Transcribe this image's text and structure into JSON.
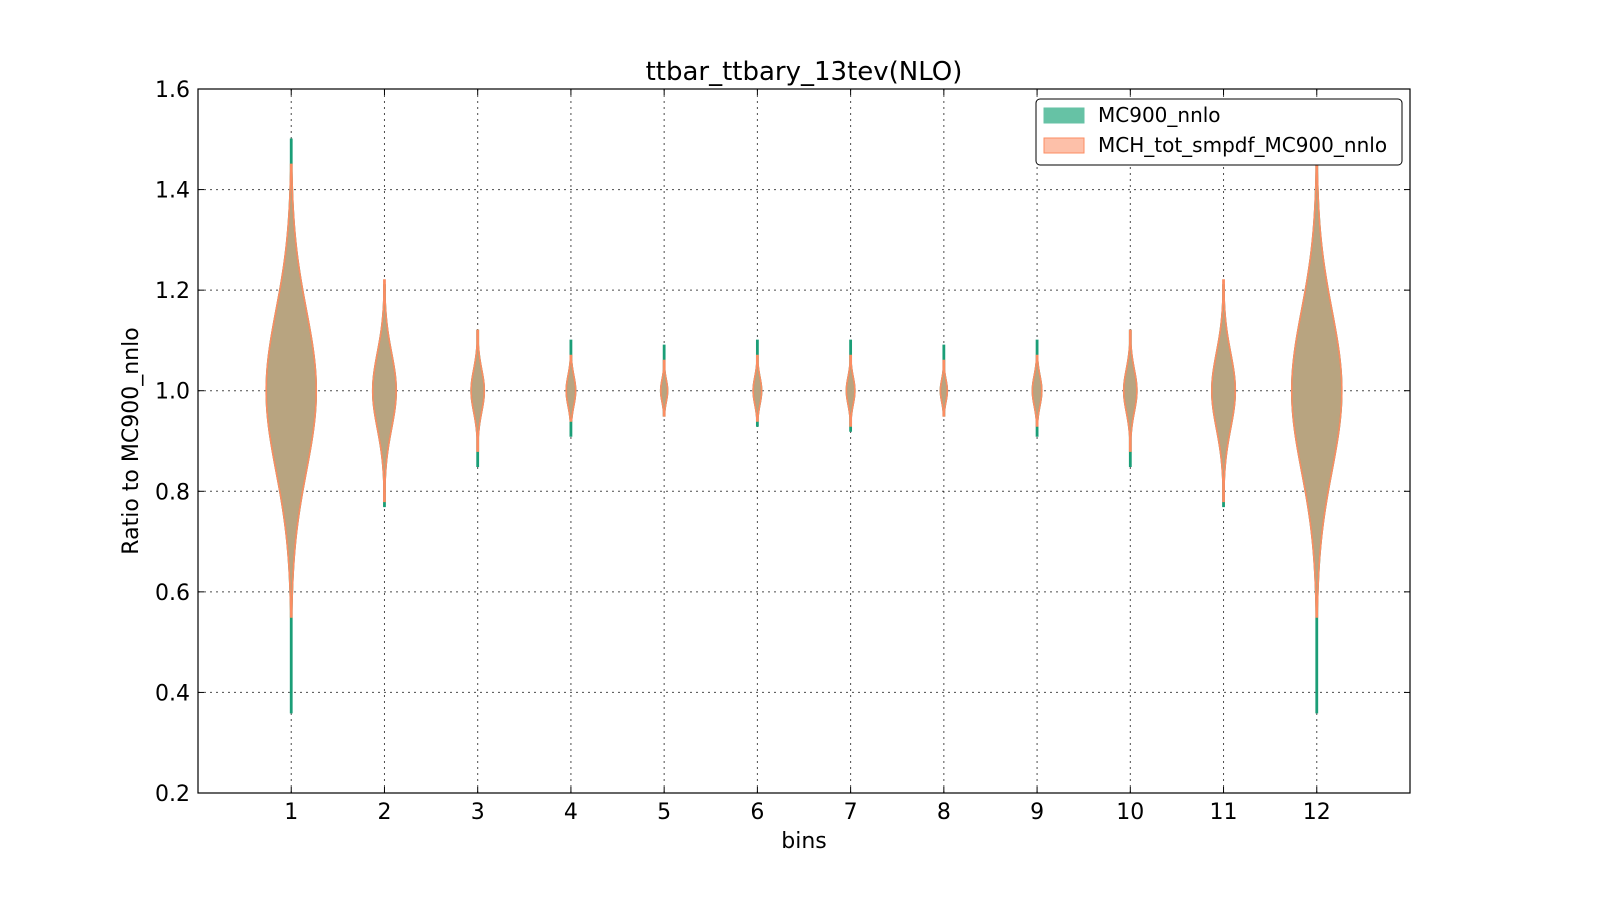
{
  "chart_data": {
    "type": "violin",
    "title": "ttbar_ttbary_13tev(NLO)",
    "xlabel": "bins",
    "ylabel": "Ratio to MC900_nnlo",
    "ylim": [
      0.2,
      1.6
    ],
    "xlim": [
      0,
      13
    ],
    "yticks": [
      "0.2",
      "0.4",
      "0.6",
      "0.8",
      "1.0",
      "1.2",
      "1.4",
      "1.6"
    ],
    "categories": [
      "1",
      "2",
      "3",
      "4",
      "5",
      "6",
      "7",
      "8",
      "9",
      "10",
      "11",
      "12"
    ],
    "grid": true,
    "legend_position": "top-right",
    "series": [
      {
        "name": "MC900_nnlo",
        "color": "#66c2a5",
        "edge_color": "#1b9e77",
        "min": [
          0.36,
          0.77,
          0.85,
          0.91,
          0.95,
          0.93,
          0.92,
          0.95,
          0.91,
          0.85,
          0.77,
          0.36
        ],
        "max": [
          1.5,
          1.21,
          1.12,
          1.1,
          1.09,
          1.1,
          1.1,
          1.09,
          1.1,
          1.12,
          1.21,
          1.46
        ],
        "center": [
          1.0,
          1.0,
          1.0,
          1.0,
          1.0,
          1.0,
          1.0,
          1.0,
          1.0,
          1.0,
          1.0,
          1.0
        ],
        "spread": [
          0.16,
          0.075,
          0.042,
          0.03,
          0.022,
          0.027,
          0.027,
          0.022,
          0.03,
          0.042,
          0.075,
          0.16
        ]
      },
      {
        "name": "MCH_tot_smpdf_MC900_nnlo",
        "color": "#fc8d62",
        "edge_color": "#fc8d62",
        "min": [
          0.55,
          0.78,
          0.88,
          0.94,
          0.95,
          0.94,
          0.93,
          0.95,
          0.93,
          0.88,
          0.78,
          0.55
        ],
        "max": [
          1.45,
          1.22,
          1.12,
          1.07,
          1.06,
          1.07,
          1.07,
          1.06,
          1.07,
          1.12,
          1.22,
          1.45
        ],
        "center": [
          1.0,
          1.0,
          1.0,
          1.0,
          1.0,
          1.0,
          1.0,
          1.0,
          1.0,
          1.0,
          1.0,
          1.0
        ],
        "spread": [
          0.16,
          0.075,
          0.042,
          0.03,
          0.022,
          0.027,
          0.027,
          0.022,
          0.03,
          0.042,
          0.075,
          0.16
        ]
      }
    ],
    "overlap_color": "#a99e7a"
  }
}
